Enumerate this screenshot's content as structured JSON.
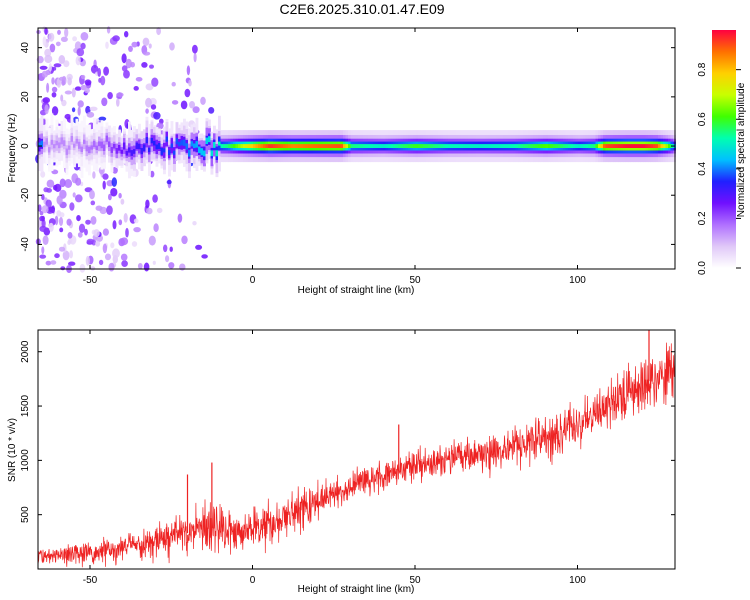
{
  "title": "C2E6.2025.310.01.47.E09",
  "colors": {
    "snr_line": "#ee2222",
    "axis": "#000000",
    "background": "#ffffff"
  },
  "chart_data": [
    {
      "type": "heatmap",
      "xlabel": "Height of straight line (km)",
      "ylabel": "Frequency (Hz)",
      "xlim": [
        -66,
        130
      ],
      "ylim": [
        -50,
        48
      ],
      "xticks": [
        -50,
        0,
        50,
        100
      ],
      "yticks": [
        -40,
        -20,
        0,
        20,
        40
      ],
      "colorbar": {
        "label": "Normalized spectral amplitude",
        "range": [
          0.0,
          0.96
        ],
        "ticks": [
          0.0,
          0.2,
          0.4,
          0.6,
          0.8
        ],
        "colormap": [
          "#ffffff",
          "#e0c8f8",
          "#b070ff",
          "#7010ff",
          "#2020ff",
          "#00c0ff",
          "#00ffb0",
          "#40ff00",
          "#c8ff00",
          "#ffd000",
          "#ff7000",
          "#ff0040"
        ]
      },
      "ridge_center_hz": 0,
      "ridge_profile": [
        {
          "x": -65,
          "amp": 0.15
        },
        {
          "x": -55,
          "amp": 0.15
        },
        {
          "x": -45,
          "amp": 0.2
        },
        {
          "x": -38,
          "amp": 0.3
        },
        {
          "x": -30,
          "amp": 0.35
        },
        {
          "x": -22,
          "amp": 0.38
        },
        {
          "x": -15,
          "amp": 0.45
        },
        {
          "x": -8,
          "amp": 0.55
        },
        {
          "x": 0,
          "amp": 0.8
        },
        {
          "x": 5,
          "amp": 0.92
        },
        {
          "x": 12,
          "amp": 0.85
        },
        {
          "x": 20,
          "amp": 0.88
        },
        {
          "x": 27,
          "amp": 0.9
        },
        {
          "x": 30,
          "amp": 0.55
        },
        {
          "x": 40,
          "amp": 0.5
        },
        {
          "x": 50,
          "amp": 0.6
        },
        {
          "x": 60,
          "amp": 0.52
        },
        {
          "x": 70,
          "amp": 0.5
        },
        {
          "x": 80,
          "amp": 0.52
        },
        {
          "x": 90,
          "amp": 0.62
        },
        {
          "x": 100,
          "amp": 0.5
        },
        {
          "x": 105,
          "amp": 0.55
        },
        {
          "x": 108,
          "amp": 0.9
        },
        {
          "x": 115,
          "amp": 0.95
        },
        {
          "x": 120,
          "amp": 0.95
        },
        {
          "x": 124,
          "amp": 0.9
        },
        {
          "x": 128,
          "amp": 0.6
        },
        {
          "x": 130,
          "amp": 0.4
        }
      ],
      "scatter_region_km": [
        -66,
        -10
      ]
    },
    {
      "type": "line",
      "xlabel": "Height of straight line (km)",
      "ylabel": "SNR (10 * v/v)",
      "xlim": [
        -66,
        130
      ],
      "ylim": [
        0,
        2200
      ],
      "xticks": [
        -50,
        0,
        50,
        100
      ],
      "yticks": [
        500,
        1000,
        1500,
        2000
      ],
      "series": [
        {
          "color": "#ee2222",
          "envelope": [
            {
              "x": -66,
              "mean": 110,
              "spread": 90
            },
            {
              "x": -50,
              "mean": 140,
              "spread": 110
            },
            {
              "x": -40,
              "mean": 200,
              "spread": 130
            },
            {
              "x": -30,
              "mean": 260,
              "spread": 170
            },
            {
              "x": -20,
              "mean": 330,
              "spread": 200
            },
            {
              "x": -12,
              "mean": 380,
              "spread": 260
            },
            {
              "x": -5,
              "mean": 350,
              "spread": 200
            },
            {
              "x": 0,
              "mean": 380,
              "spread": 200
            },
            {
              "x": 10,
              "mean": 470,
              "spread": 220
            },
            {
              "x": 20,
              "mean": 620,
              "spread": 180
            },
            {
              "x": 30,
              "mean": 760,
              "spread": 160
            },
            {
              "x": 40,
              "mean": 860,
              "spread": 160
            },
            {
              "x": 50,
              "mean": 950,
              "spread": 170
            },
            {
              "x": 60,
              "mean": 1010,
              "spread": 180
            },
            {
              "x": 70,
              "mean": 1060,
              "spread": 190
            },
            {
              "x": 80,
              "mean": 1120,
              "spread": 210
            },
            {
              "x": 90,
              "mean": 1220,
              "spread": 220
            },
            {
              "x": 100,
              "mean": 1330,
              "spread": 230
            },
            {
              "x": 110,
              "mean": 1500,
              "spread": 260
            },
            {
              "x": 120,
              "mean": 1700,
              "spread": 280
            },
            {
              "x": 130,
              "mean": 1850,
              "spread": 300
            }
          ],
          "spikes": [
            {
              "x": -12.5,
              "y": 980
            },
            {
              "x": -20,
              "y": 870
            },
            {
              "x": 45,
              "y": 1330
            },
            {
              "x": 122,
              "y": 2200
            }
          ]
        }
      ]
    }
  ]
}
